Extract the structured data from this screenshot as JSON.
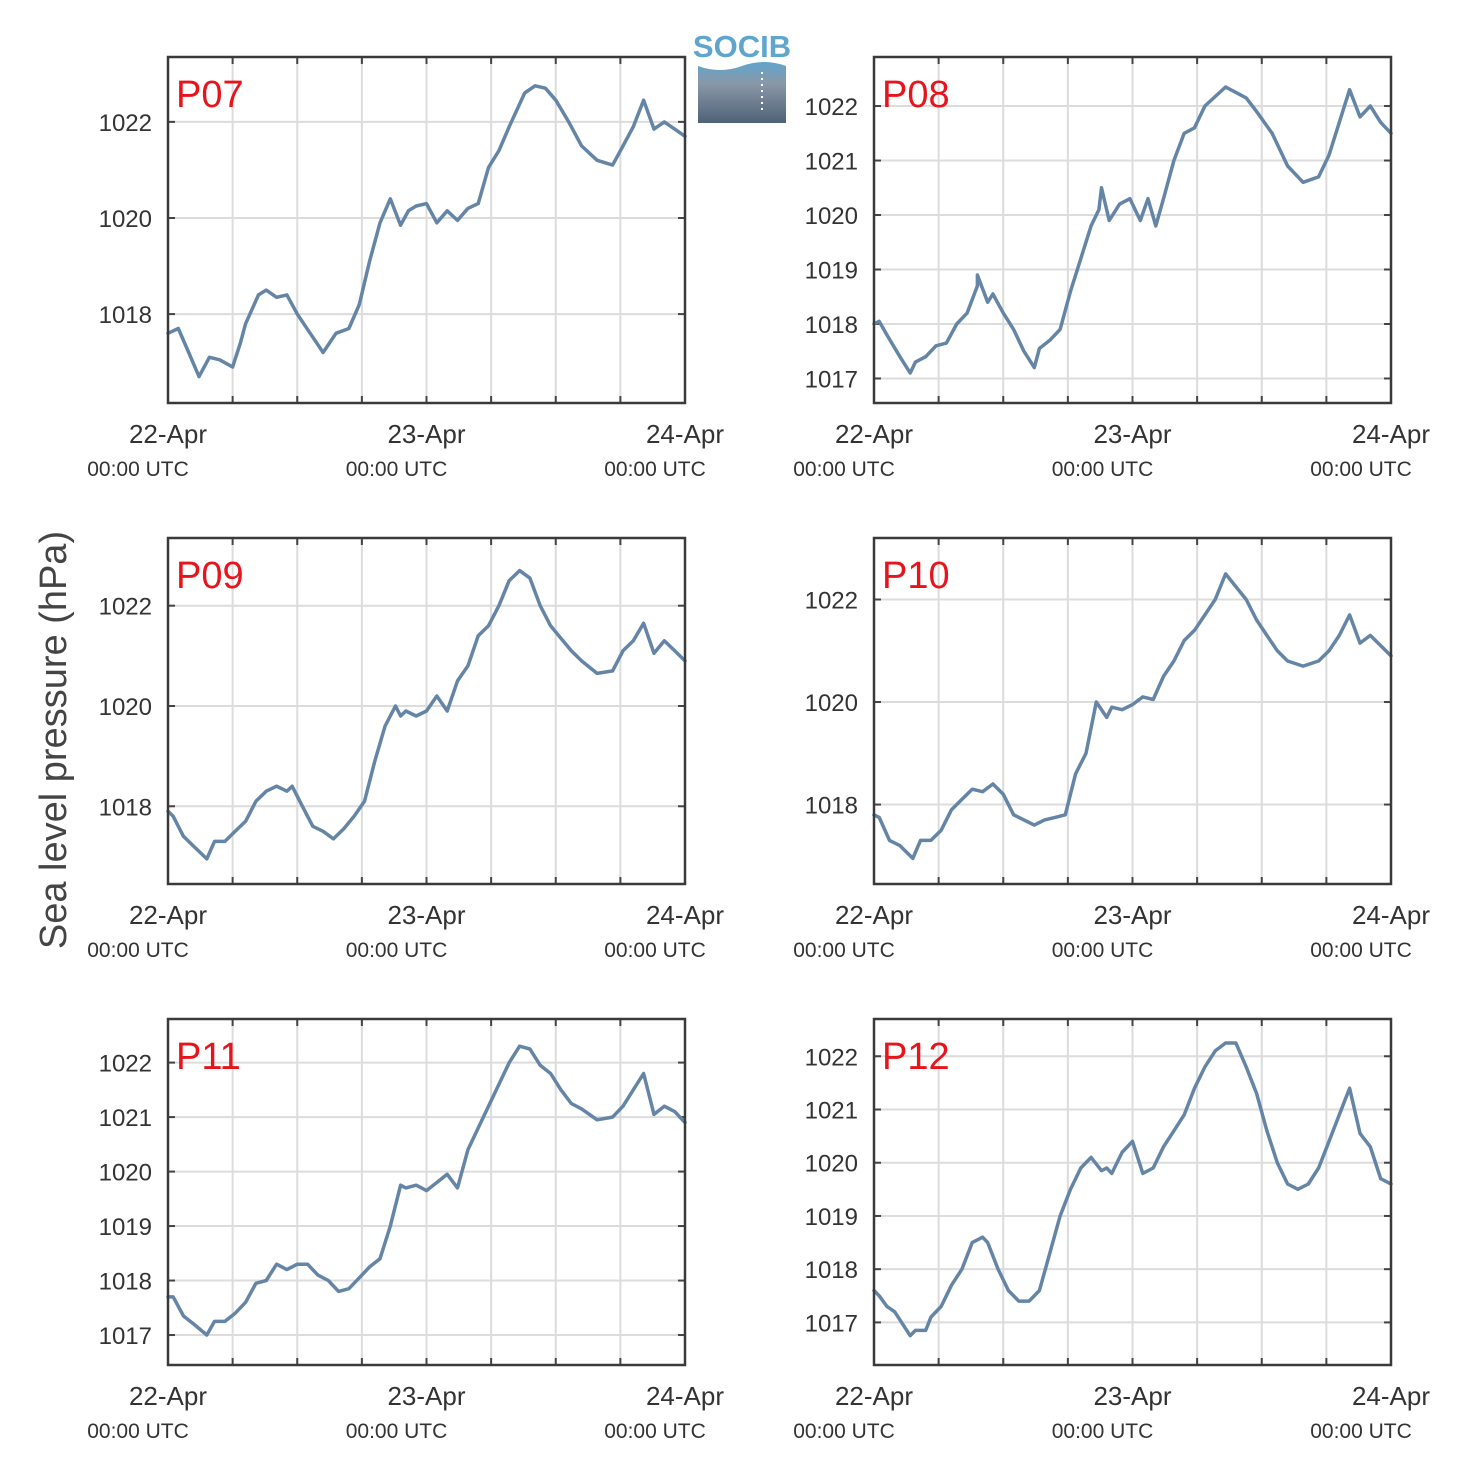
{
  "figure": {
    "ylabel": "Sea level pressure (hPa)",
    "logo_text": "SOCIB",
    "line_color": "#6585a6",
    "label_color": "#e8141c",
    "grid_color": "#dcdcdc",
    "x_ticks": [
      {
        "day": 0,
        "line1": "22-Apr",
        "line2": "00:00 UTC"
      },
      {
        "day": 1,
        "line1": "23-Apr",
        "line2": "00:00 UTC"
      },
      {
        "day": 2,
        "line1": "24-Apr",
        "line2": "00:00 UTC"
      }
    ]
  },
  "chart_data": [
    {
      "type": "line",
      "label": "P07",
      "x_unit": "days after 22-Apr 00:00 UTC",
      "xlim": [
        0,
        2
      ],
      "ylim": [
        1016.15,
        1023.35
      ],
      "yticks": [
        1018,
        1020,
        1022
      ],
      "x": [
        0,
        0.04,
        0.08,
        0.12,
        0.16,
        0.2,
        0.25,
        0.28,
        0.3,
        0.35,
        0.38,
        0.42,
        0.46,
        0.5,
        0.55,
        0.6,
        0.65,
        0.7,
        0.74,
        0.78,
        0.82,
        0.86,
        0.9,
        0.93,
        0.96,
        1,
        1.04,
        1.08,
        1.12,
        1.16,
        1.2,
        1.24,
        1.28,
        1.32,
        1.38,
        1.42,
        1.46,
        1.5,
        1.55,
        1.6,
        1.66,
        1.72,
        1.76,
        1.8,
        1.84,
        1.88,
        1.92,
        1.96,
        2
      ],
      "y": [
        1017.6,
        1017.7,
        1017.2,
        1016.7,
        1017.1,
        1017.05,
        1016.9,
        1017.4,
        1017.8,
        1018.4,
        1018.5,
        1018.35,
        1018.4,
        1018.0,
        1017.6,
        1017.2,
        1017.6,
        1017.7,
        1018.2,
        1019.1,
        1019.9,
        1020.4,
        1019.85,
        1020.15,
        1020.25,
        1020.3,
        1019.9,
        1020.15,
        1019.95,
        1020.2,
        1020.3,
        1021.05,
        1021.4,
        1021.9,
        1022.6,
        1022.75,
        1022.7,
        1022.45,
        1022.0,
        1021.5,
        1021.2,
        1021.1,
        1021.5,
        1021.9,
        1022.45,
        1021.85,
        1022.0,
        1021.85,
        1021.7
      ]
    },
    {
      "type": "line",
      "label": "P08",
      "x_unit": "days after 22-Apr 00:00 UTC",
      "xlim": [
        0,
        2
      ],
      "ylim": [
        1016.55,
        1022.9
      ],
      "yticks": [
        1017,
        1018,
        1019,
        1020,
        1021,
        1022
      ],
      "x": [
        0,
        0.02,
        0.05,
        0.1,
        0.14,
        0.16,
        0.2,
        0.24,
        0.28,
        0.32,
        0.36,
        0.4,
        0.4,
        0.44,
        0.46,
        0.5,
        0.54,
        0.58,
        0.62,
        0.64,
        0.68,
        0.72,
        0.76,
        0.8,
        0.84,
        0.87,
        0.88,
        0.91,
        0.95,
        0.99,
        1.03,
        1.06,
        1.09,
        1.12,
        1.16,
        1.2,
        1.24,
        1.28,
        1.36,
        1.4,
        1.44,
        1.48,
        1.54,
        1.6,
        1.66,
        1.72,
        1.76,
        1.8,
        1.84,
        1.88,
        1.92,
        1.96,
        2
      ],
      "y": [
        1018.0,
        1018.05,
        1017.8,
        1017.4,
        1017.1,
        1017.3,
        1017.4,
        1017.6,
        1017.65,
        1018.0,
        1018.2,
        1018.7,
        1018.9,
        1018.4,
        1018.55,
        1018.2,
        1017.9,
        1017.5,
        1017.2,
        1017.55,
        1017.7,
        1017.9,
        1018.6,
        1019.2,
        1019.8,
        1020.1,
        1020.5,
        1019.9,
        1020.2,
        1020.3,
        1019.9,
        1020.3,
        1019.8,
        1020.3,
        1021.0,
        1021.5,
        1021.6,
        1022.0,
        1022.35,
        1022.25,
        1022.15,
        1021.9,
        1021.5,
        1020.9,
        1020.6,
        1020.7,
        1021.1,
        1021.7,
        1022.3,
        1021.8,
        1022.0,
        1021.7,
        1021.5
      ]
    },
    {
      "type": "line",
      "label": "P09",
      "x_unit": "days after 22-Apr 00:00 UTC",
      "xlim": [
        0,
        2
      ],
      "ylim": [
        1016.45,
        1023.35
      ],
      "yticks": [
        1018,
        1020,
        1022
      ],
      "x": [
        0,
        0.02,
        0.06,
        0.1,
        0.15,
        0.18,
        0.22,
        0.26,
        0.3,
        0.34,
        0.38,
        0.42,
        0.46,
        0.48,
        0.52,
        0.56,
        0.6,
        0.64,
        0.68,
        0.72,
        0.76,
        0.8,
        0.84,
        0.88,
        0.9,
        0.92,
        0.96,
        1,
        1.04,
        1.08,
        1.12,
        1.16,
        1.2,
        1.24,
        1.28,
        1.32,
        1.36,
        1.4,
        1.44,
        1.48,
        1.52,
        1.56,
        1.6,
        1.66,
        1.72,
        1.76,
        1.8,
        1.84,
        1.88,
        1.92,
        1.96,
        2
      ],
      "y": [
        1017.9,
        1017.8,
        1017.4,
        1017.2,
        1016.95,
        1017.3,
        1017.3,
        1017.5,
        1017.7,
        1018.1,
        1018.3,
        1018.4,
        1018.3,
        1018.4,
        1018.0,
        1017.6,
        1017.5,
        1017.35,
        1017.55,
        1017.8,
        1018.1,
        1018.9,
        1019.6,
        1020.0,
        1019.8,
        1019.9,
        1019.8,
        1019.9,
        1020.2,
        1019.9,
        1020.5,
        1020.8,
        1021.4,
        1021.6,
        1022.0,
        1022.5,
        1022.7,
        1022.55,
        1022.0,
        1021.6,
        1021.35,
        1021.1,
        1020.9,
        1020.65,
        1020.7,
        1021.1,
        1021.3,
        1021.65,
        1021.05,
        1021.3,
        1021.1,
        1020.9
      ]
    },
    {
      "type": "line",
      "label": "P10",
      "x_unit": "days after 22-Apr 00:00 UTC",
      "xlim": [
        0,
        2
      ],
      "ylim": [
        1016.45,
        1023.2
      ],
      "yticks": [
        1018,
        1020,
        1022
      ],
      "x": [
        0,
        0.02,
        0.06,
        0.1,
        0.15,
        0.18,
        0.22,
        0.26,
        0.3,
        0.34,
        0.38,
        0.42,
        0.46,
        0.5,
        0.54,
        0.58,
        0.62,
        0.66,
        0.7,
        0.74,
        0.78,
        0.82,
        0.86,
        0.9,
        0.92,
        0.96,
        1,
        1.04,
        1.08,
        1.12,
        1.16,
        1.2,
        1.24,
        1.28,
        1.32,
        1.36,
        1.4,
        1.44,
        1.48,
        1.52,
        1.56,
        1.6,
        1.66,
        1.72,
        1.76,
        1.8,
        1.84,
        1.88,
        1.92,
        1.96,
        2
      ],
      "y": [
        1017.8,
        1017.75,
        1017.3,
        1017.2,
        1016.95,
        1017.3,
        1017.3,
        1017.5,
        1017.9,
        1018.1,
        1018.3,
        1018.25,
        1018.4,
        1018.2,
        1017.8,
        1017.7,
        1017.6,
        1017.7,
        1017.75,
        1017.8,
        1018.6,
        1019.0,
        1020.0,
        1019.7,
        1019.9,
        1019.85,
        1019.95,
        1020.1,
        1020.05,
        1020.5,
        1020.8,
        1021.2,
        1021.4,
        1021.7,
        1022.0,
        1022.5,
        1022.25,
        1022.0,
        1021.6,
        1021.3,
        1021.0,
        1020.8,
        1020.7,
        1020.8,
        1021.0,
        1021.3,
        1021.7,
        1021.15,
        1021.3,
        1021.1,
        1020.9
      ]
    },
    {
      "type": "line",
      "label": "P11",
      "x_unit": "days after 22-Apr 00:00 UTC",
      "xlim": [
        0,
        2
      ],
      "ylim": [
        1016.45,
        1022.8
      ],
      "yticks": [
        1017,
        1018,
        1019,
        1020,
        1021,
        1022
      ],
      "x": [
        0,
        0.02,
        0.06,
        0.1,
        0.15,
        0.18,
        0.22,
        0.26,
        0.3,
        0.34,
        0.38,
        0.42,
        0.46,
        0.5,
        0.54,
        0.58,
        0.62,
        0.66,
        0.7,
        0.74,
        0.78,
        0.82,
        0.86,
        0.9,
        0.92,
        0.96,
        1,
        1.04,
        1.08,
        1.12,
        1.16,
        1.2,
        1.24,
        1.28,
        1.32,
        1.36,
        1.4,
        1.44,
        1.48,
        1.52,
        1.56,
        1.6,
        1.66,
        1.72,
        1.76,
        1.8,
        1.84,
        1.88,
        1.92,
        1.96,
        2
      ],
      "y": [
        1017.7,
        1017.7,
        1017.35,
        1017.2,
        1017.0,
        1017.25,
        1017.25,
        1017.4,
        1017.6,
        1017.95,
        1018.0,
        1018.3,
        1018.2,
        1018.3,
        1018.3,
        1018.1,
        1018.0,
        1017.8,
        1017.85,
        1018.05,
        1018.25,
        1018.4,
        1019.0,
        1019.75,
        1019.7,
        1019.75,
        1019.65,
        1019.8,
        1019.95,
        1019.7,
        1020.4,
        1020.8,
        1021.2,
        1021.6,
        1022.0,
        1022.3,
        1022.25,
        1021.95,
        1021.8,
        1021.5,
        1021.25,
        1021.15,
        1020.95,
        1021.0,
        1021.2,
        1021.5,
        1021.8,
        1021.05,
        1021.2,
        1021.1,
        1020.9
      ]
    },
    {
      "type": "line",
      "label": "P12",
      "x_unit": "days after 22-Apr 00:00 UTC",
      "xlim": [
        0,
        2
      ],
      "ylim": [
        1016.2,
        1022.7
      ],
      "yticks": [
        1017,
        1018,
        1019,
        1020,
        1021,
        1022
      ],
      "x": [
        0,
        0.02,
        0.05,
        0.08,
        0.12,
        0.14,
        0.16,
        0.2,
        0.22,
        0.26,
        0.3,
        0.34,
        0.38,
        0.42,
        0.44,
        0.48,
        0.52,
        0.56,
        0.6,
        0.64,
        0.68,
        0.72,
        0.76,
        0.8,
        0.84,
        0.88,
        0.9,
        0.92,
        0.96,
        1,
        1.04,
        1.08,
        1.12,
        1.16,
        1.2,
        1.24,
        1.28,
        1.32,
        1.36,
        1.4,
        1.44,
        1.48,
        1.52,
        1.56,
        1.6,
        1.64,
        1.68,
        1.72,
        1.76,
        1.8,
        1.84,
        1.88,
        1.92,
        1.96,
        2
      ],
      "y": [
        1017.6,
        1017.5,
        1017.3,
        1017.2,
        1016.9,
        1016.75,
        1016.85,
        1016.85,
        1017.1,
        1017.3,
        1017.7,
        1018.0,
        1018.5,
        1018.6,
        1018.5,
        1018.0,
        1017.6,
        1017.4,
        1017.4,
        1017.6,
        1018.3,
        1019.0,
        1019.5,
        1019.9,
        1020.1,
        1019.85,
        1019.9,
        1019.8,
        1020.2,
        1020.4,
        1019.8,
        1019.9,
        1020.3,
        1020.6,
        1020.9,
        1021.4,
        1021.8,
        1022.1,
        1022.25,
        1022.25,
        1021.8,
        1021.3,
        1020.6,
        1020.0,
        1019.6,
        1019.5,
        1019.6,
        1019.9,
        1020.4,
        1020.9,
        1021.4,
        1020.55,
        1020.3,
        1019.7,
        1019.6
      ]
    }
  ]
}
